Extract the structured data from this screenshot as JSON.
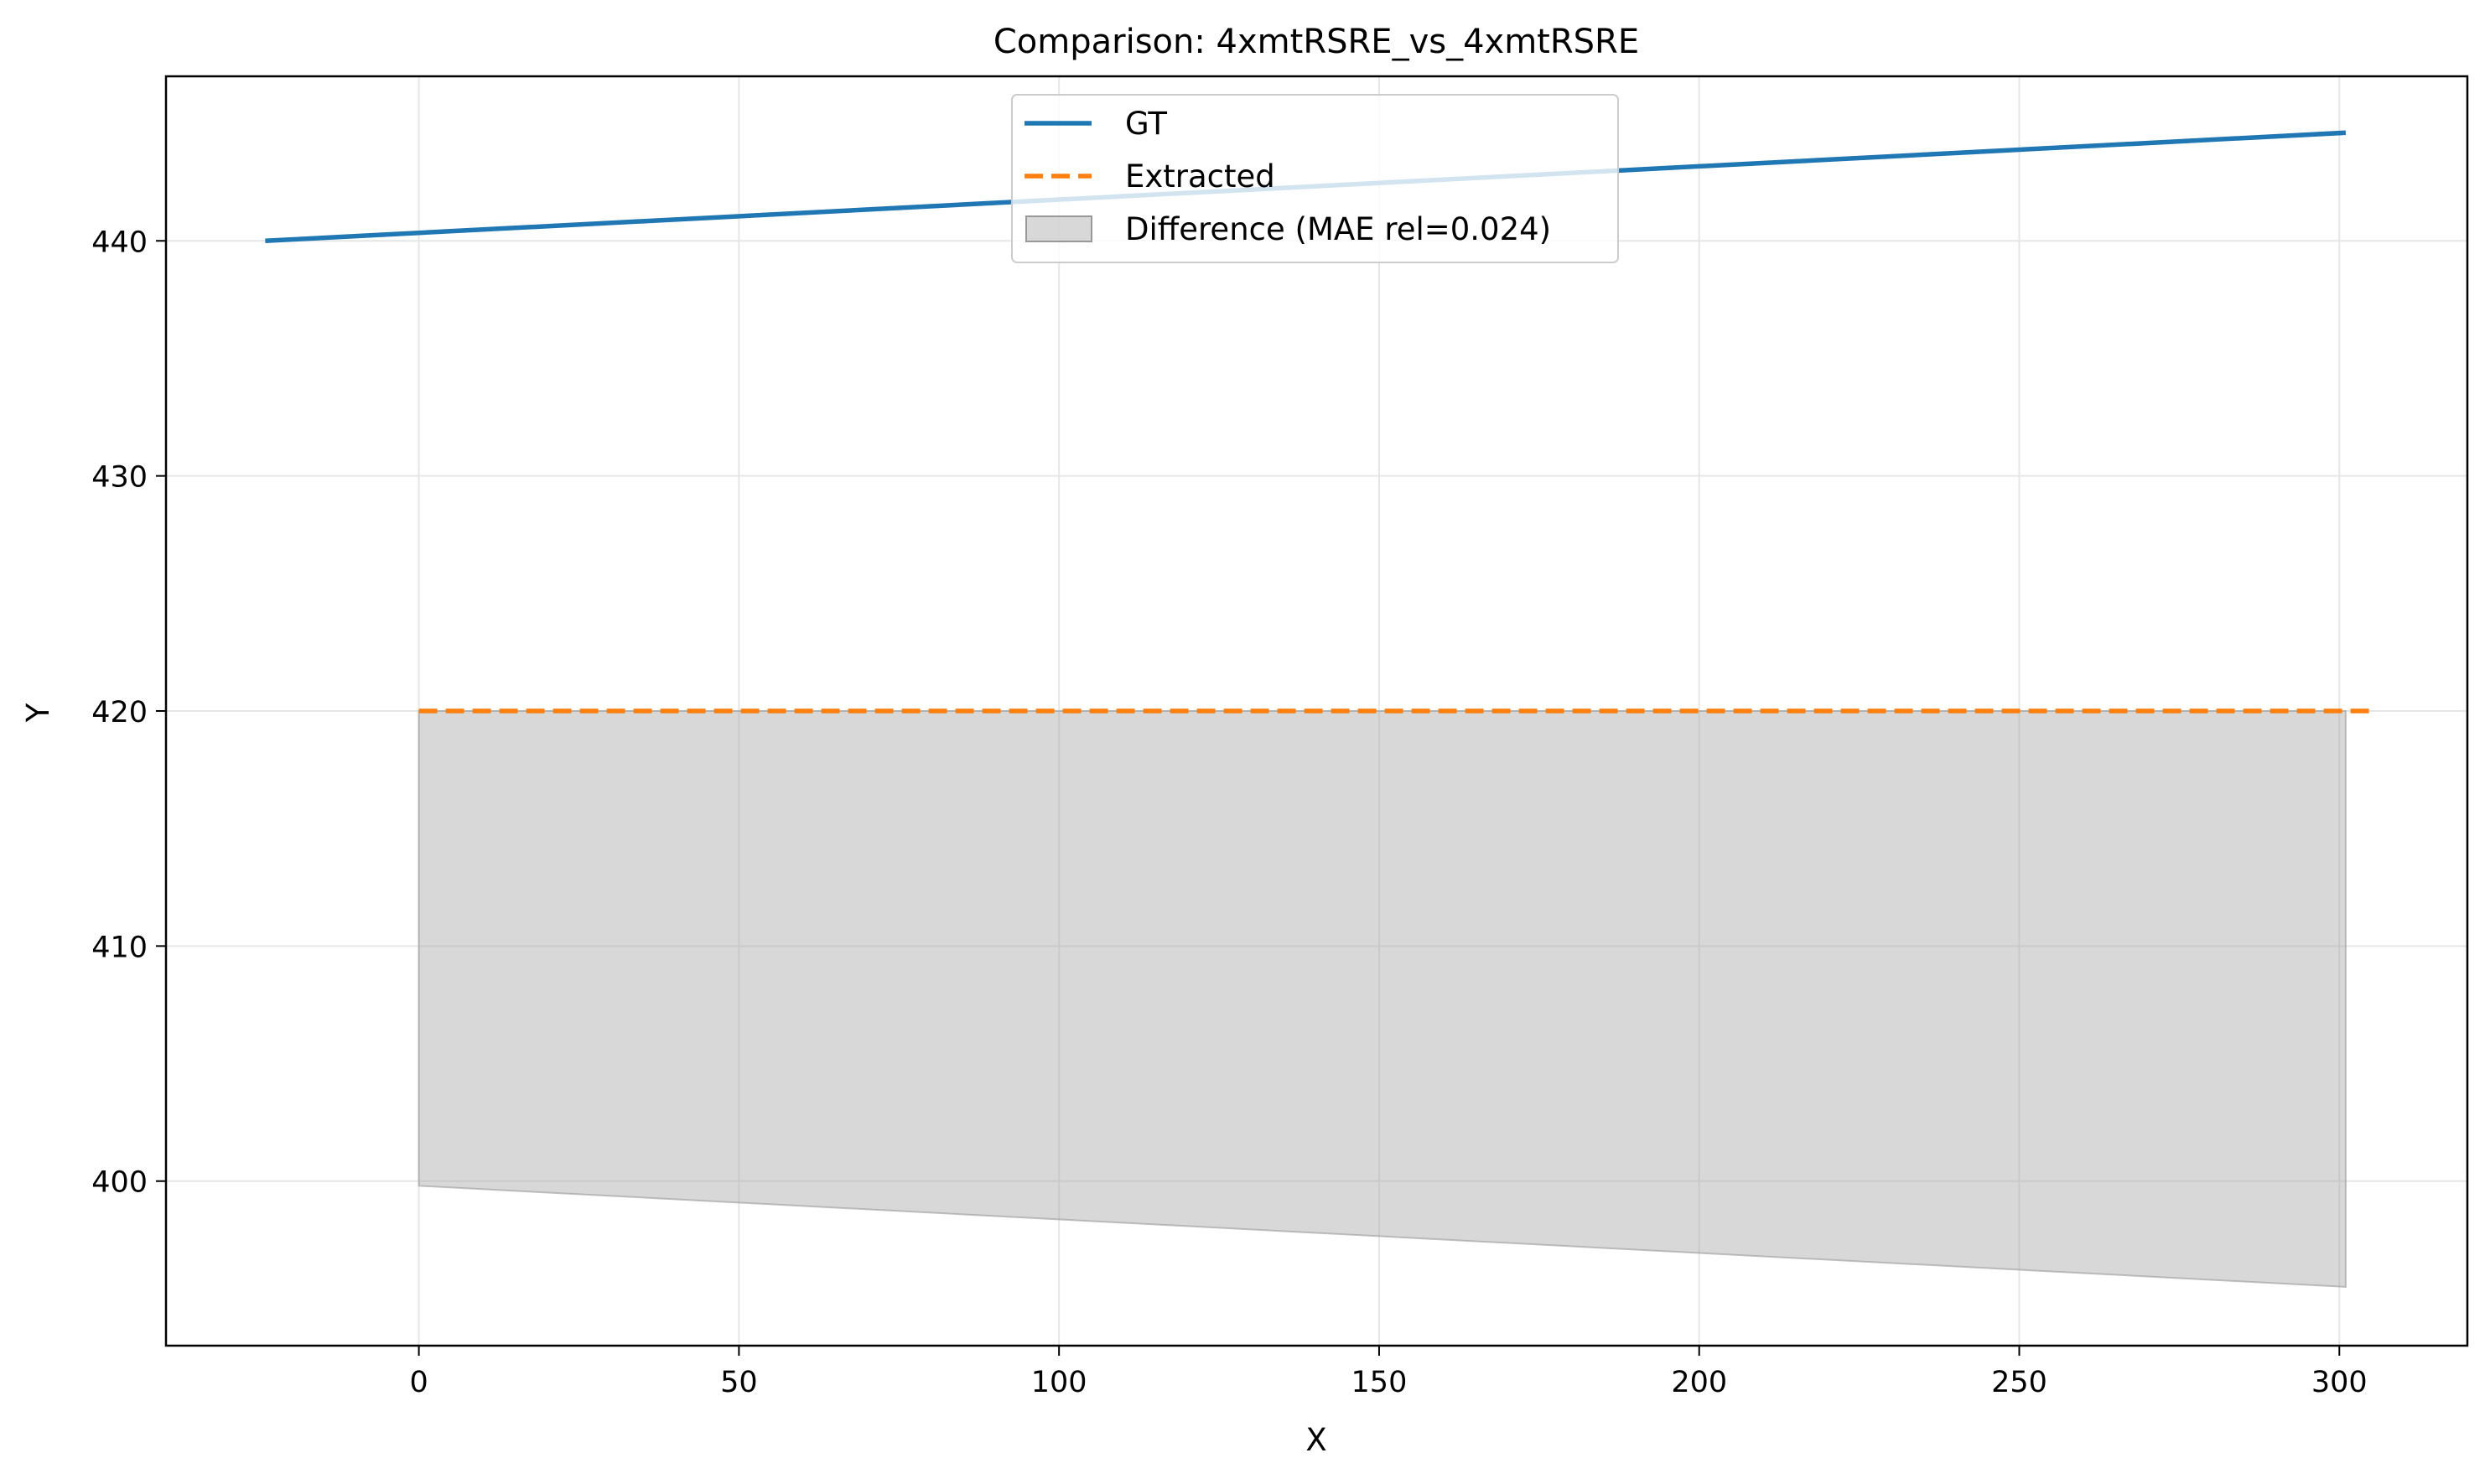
{
  "chart_data": {
    "type": "line",
    "title": "Comparison: 4xmtRSRE_vs_4xmtRSRE",
    "xlabel": "X",
    "ylabel": "Y",
    "xlim": [
      -39.5,
      320
    ],
    "ylim": [
      393,
      447
    ],
    "xticks": [
      0,
      50,
      100,
      150,
      200,
      250,
      300
    ],
    "yticks": [
      400,
      410,
      420,
      430,
      440
    ],
    "grid": true,
    "legend_position": "upper center",
    "series": [
      {
        "name": "GT",
        "color": "#1f77b4",
        "style": "solid",
        "x": [
          -24,
          301
        ],
        "y": [
          440.0,
          444.6
        ]
      },
      {
        "name": "Extracted",
        "color": "#ff7f0e",
        "style": "dashed",
        "x": [
          0,
          305
        ],
        "y": [
          420.0,
          420.0
        ]
      }
    ],
    "difference": {
      "name": "Difference (MAE rel=0.024)",
      "color": "#a9a9a9",
      "upper": {
        "x": [
          0,
          301
        ],
        "y": [
          420.0,
          420.0
        ]
      },
      "lower": {
        "x": [
          0,
          301
        ],
        "y": [
          399.8,
          395.5
        ]
      }
    }
  }
}
